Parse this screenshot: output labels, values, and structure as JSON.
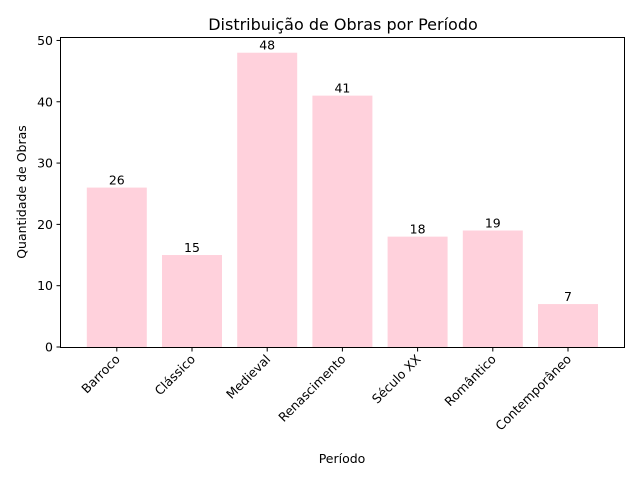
{
  "chart_data": {
    "type": "bar",
    "title": "Distribuição de Obras por Período",
    "xlabel": "Período",
    "ylabel": "Quantidade de Obras",
    "categories": [
      "Barroco",
      "Clássico",
      "Medieval",
      "Renascimento",
      "Século XX",
      "Romântico",
      "Contemporâneo"
    ],
    "values": [
      26,
      15,
      48,
      41,
      18,
      19,
      7
    ],
    "ylim": [
      0,
      50.4
    ],
    "yticks": [
      0,
      10,
      20,
      30,
      40,
      50
    ],
    "grid": false,
    "legend": "none",
    "bar_color": "#ffd1dc",
    "data_labels": true
  }
}
